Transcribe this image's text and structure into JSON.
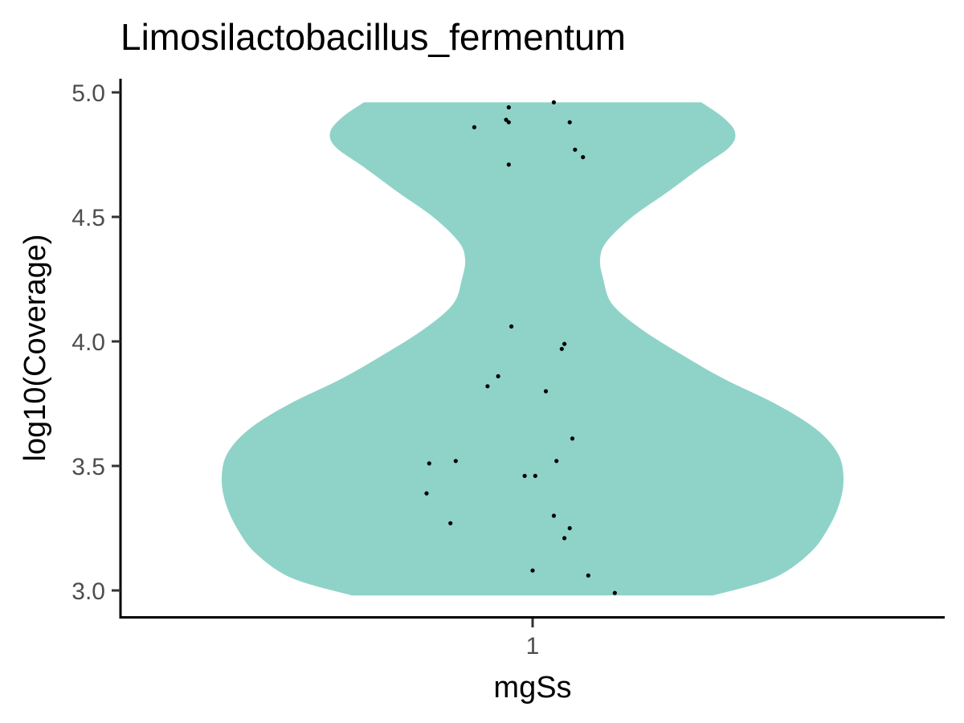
{
  "chart_data": {
    "type": "violin",
    "title": "Limosilactobacillus_fermentum",
    "xlabel": "mgSs",
    "ylabel": "log10(Coverage)",
    "categories": [
      "1"
    ],
    "ylim": [
      2.9,
      5.06
    ],
    "yticks": [
      3.0,
      3.5,
      4.0,
      4.5,
      5.0
    ],
    "ytick_labels": [
      "3.0",
      "3.5",
      "4.0",
      "4.5",
      "5.0"
    ],
    "grid": false,
    "legend": "none",
    "violin_color": "#8fd3c8",
    "point_color": "#000000",
    "points": [
      {
        "x": 0.91,
        "y": 4.94
      },
      {
        "x": 1.08,
        "y": 4.96
      },
      {
        "x": 0.9,
        "y": 4.89
      },
      {
        "x": 0.91,
        "y": 4.88
      },
      {
        "x": 1.14,
        "y": 4.88
      },
      {
        "x": 0.78,
        "y": 4.86
      },
      {
        "x": 1.16,
        "y": 4.77
      },
      {
        "x": 1.19,
        "y": 4.74
      },
      {
        "x": 0.91,
        "y": 4.71
      },
      {
        "x": 0.92,
        "y": 4.06
      },
      {
        "x": 1.12,
        "y": 3.99
      },
      {
        "x": 1.11,
        "y": 3.97
      },
      {
        "x": 0.87,
        "y": 3.86
      },
      {
        "x": 0.83,
        "y": 3.82
      },
      {
        "x": 1.05,
        "y": 3.8
      },
      {
        "x": 1.15,
        "y": 3.61
      },
      {
        "x": 0.71,
        "y": 3.52
      },
      {
        "x": 0.61,
        "y": 3.51
      },
      {
        "x": 1.09,
        "y": 3.52
      },
      {
        "x": 0.97,
        "y": 3.46
      },
      {
        "x": 1.01,
        "y": 3.46
      },
      {
        "x": 0.6,
        "y": 3.39
      },
      {
        "x": 1.08,
        "y": 3.3
      },
      {
        "x": 0.69,
        "y": 3.27
      },
      {
        "x": 1.14,
        "y": 3.25
      },
      {
        "x": 1.12,
        "y": 3.21
      },
      {
        "x": 1.0,
        "y": 3.08
      },
      {
        "x": 1.21,
        "y": 3.06
      },
      {
        "x": 1.31,
        "y": 2.99
      }
    ]
  }
}
